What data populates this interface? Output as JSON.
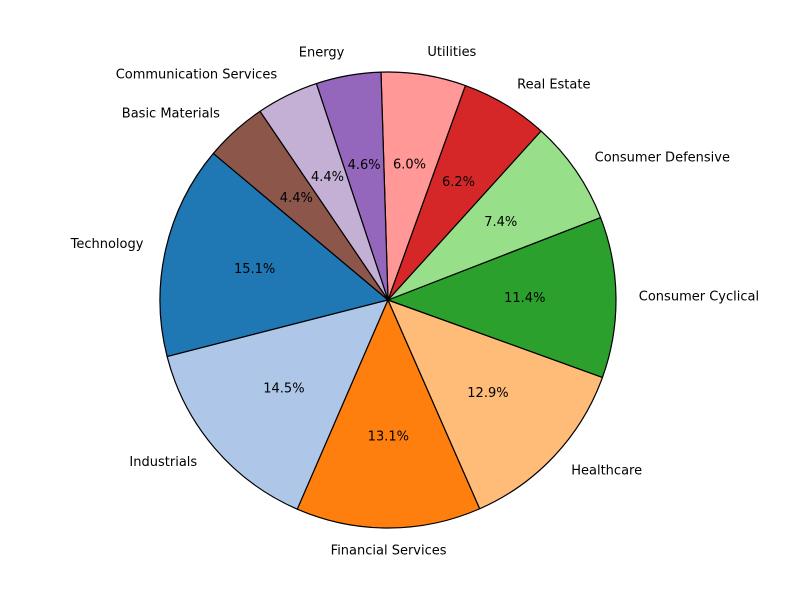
{
  "chart_data": {
    "type": "pie",
    "title": "",
    "start_angle_deg": 140,
    "direction": "counterclockwise",
    "slices": [
      {
        "label": "Technology",
        "value": 15.1,
        "pct_text": "15.1%",
        "color": "#1f77b4"
      },
      {
        "label": "Industrials",
        "value": 14.5,
        "pct_text": "14.5%",
        "color": "#aec7e8"
      },
      {
        "label": "Financial Services",
        "value": 13.1,
        "pct_text": "13.1%",
        "color": "#ff7f0e"
      },
      {
        "label": "Healthcare",
        "value": 12.9,
        "pct_text": "12.9%",
        "color": "#ffbb78"
      },
      {
        "label": "Consumer Cyclical",
        "value": 11.4,
        "pct_text": "11.4%",
        "color": "#2ca02c"
      },
      {
        "label": "Consumer Defensive",
        "value": 7.4,
        "pct_text": "7.4%",
        "color": "#98df8a"
      },
      {
        "label": "Real Estate",
        "value": 6.2,
        "pct_text": "6.2%",
        "color": "#d62728"
      },
      {
        "label": "Utilities",
        "value": 6.0,
        "pct_text": "6.0%",
        "color": "#ff9896"
      },
      {
        "label": "Energy",
        "value": 4.6,
        "pct_text": "4.6%",
        "color": "#9467bd"
      },
      {
        "label": "Communication Services",
        "value": 4.4,
        "pct_text": "4.4%",
        "color": "#c5b0d5"
      },
      {
        "label": "Basic Materials",
        "value": 4.4,
        "pct_text": "4.4%",
        "color": "#8c564b"
      }
    ]
  }
}
